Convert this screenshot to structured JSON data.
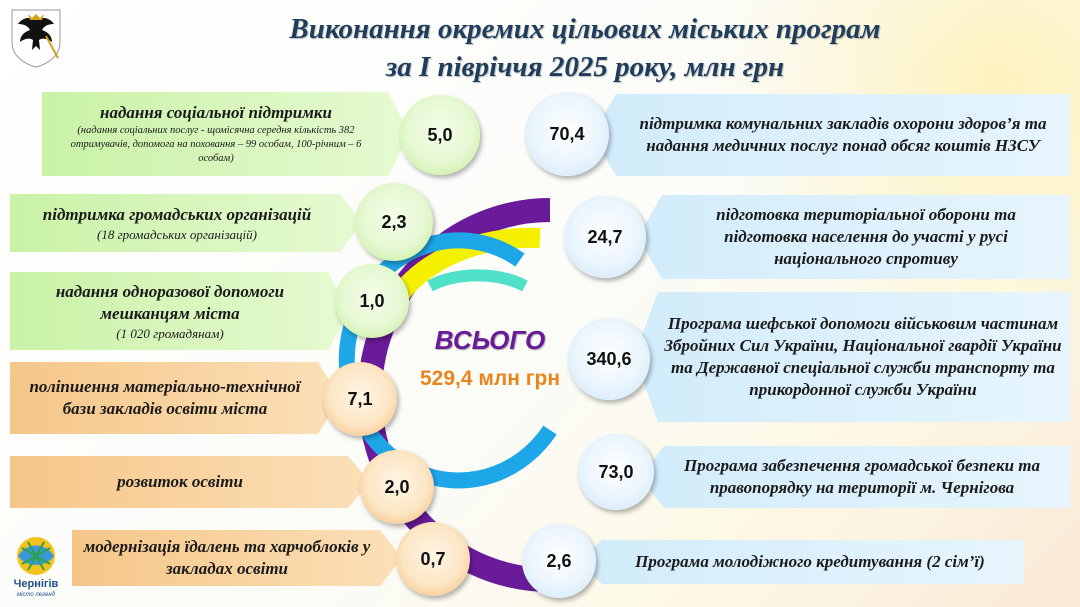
{
  "title": {
    "line1": "Виконання окремих цільових міських програм",
    "line2": "за І півріччя 2025 року, млн грн"
  },
  "logo": {
    "name": "Чернігів",
    "tagline": "місто легенд"
  },
  "total": {
    "label": "ВСЬОГО",
    "value": "529,4 млн грн"
  },
  "left_items": [
    {
      "title": "надання соціальної підтримки",
      "note": "(надання соціальних послуг - щомісячна середня кількість 382 отримувачів, допомога на поховання – 99 особам, 100-річним – 6 особам)",
      "value": "5,0"
    },
    {
      "title": "підтримка  громадських організацій",
      "note": "(18 громадських організацій)",
      "value": "2,3"
    },
    {
      "title": "надання одноразової допомоги мешканцям міста",
      "note": "(1 020 громадянам)",
      "value": "1,0"
    },
    {
      "title": "поліпшення матеріально-технічної бази закладів освіти міста",
      "value": "7,1"
    },
    {
      "title": "розвиток освіти",
      "value": "2,0"
    },
    {
      "title": "модернізація їдалень та харчоблоків у закладах освіти",
      "value": "0,7"
    }
  ],
  "right_items": [
    {
      "title": "підтримка комунальних закладів охорони здоров’я та надання медичних послуг понад обсяг коштів НЗСУ",
      "value": "70,4"
    },
    {
      "title": "підготовка територіальної оборони та підготовка населення до участі у русі національного спротиву",
      "value": "24,7"
    },
    {
      "title": "Програма шефської допомоги військовим частинам Збройних Сил України, Національної гвардії України та Державної спеціальної служби транспорту та прикордонної служби України",
      "value": "340,6"
    },
    {
      "title": "Програма забезпечення громадської безпеки та правопорядку на території м. Чернігова",
      "value": "73,0"
    },
    {
      "title": "Програма молодіжного кредитування (2 сім’ї)",
      "value": "2,6"
    }
  ],
  "colors": {
    "title": "#1f3d5c",
    "ring_purple": "#6a1b9a",
    "ring_yellow": "#f5f000",
    "ring_blue": "#1ea7e8",
    "ring_teal": "#4fe0c8",
    "total_value": "#e8861d"
  }
}
